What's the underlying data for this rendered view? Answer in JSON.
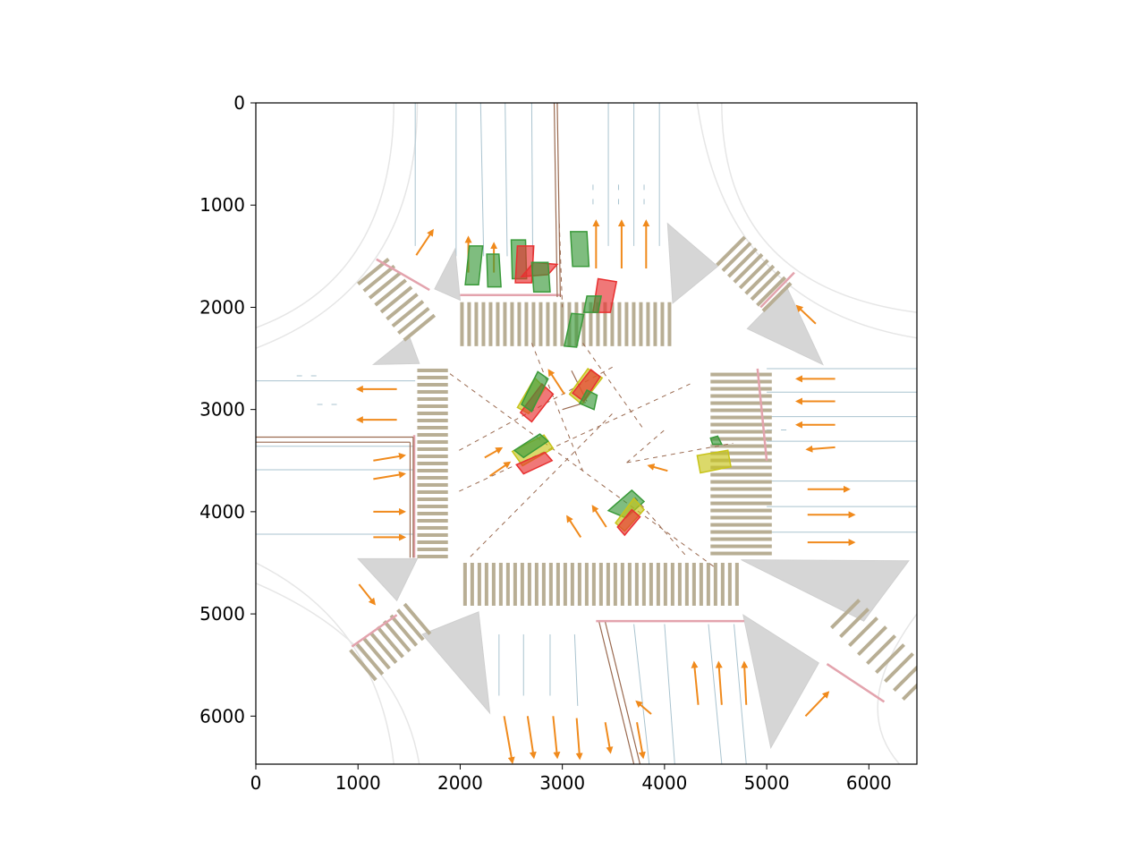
{
  "chart_data": {
    "type": "scatter",
    "subtype": "intersection-map",
    "title": "",
    "xlabel": "",
    "ylabel": "",
    "xlim": [
      0,
      6470
    ],
    "ylim": [
      6470,
      0
    ],
    "y_inverted": true,
    "grid": false,
    "xticks": [
      0,
      1000,
      2000,
      3000,
      4000,
      5000,
      6000
    ],
    "xtick_labels": [
      "0",
      "1000",
      "2000",
      "3000",
      "4000",
      "5000",
      "6000"
    ],
    "yticks": [
      0,
      1000,
      2000,
      3000,
      4000,
      5000,
      6000
    ],
    "ytick_labels": [
      "0",
      "1000",
      "2000",
      "3000",
      "4000",
      "5000",
      "6000"
    ],
    "colors": {
      "lane": "#a9c3cf",
      "road_edge": "#e6e6e6",
      "island": "#d6d6d6",
      "crosswalk": "#b8ae94",
      "stop_line": "#e3a3ad",
      "guide": "#9a6a50",
      "arrow": "#f08a1c",
      "green_box": "#3a9a3a",
      "red_box": "#e83030",
      "yellow_box": "#c8c41a"
    },
    "crosswalks": [
      {
        "name": "north",
        "x": [
          2000,
          4050
        ],
        "y": [
          1950,
          2380
        ],
        "dir": "v"
      },
      {
        "name": "south",
        "x": [
          2030,
          4700
        ],
        "y": [
          4500,
          4920
        ],
        "dir": "v"
      },
      {
        "name": "west",
        "x": [
          1580,
          1880
        ],
        "y": [
          2600,
          4450
        ],
        "dir": "h"
      },
      {
        "name": "east",
        "x": [
          4450,
          5050
        ],
        "y": [
          2640,
          4450
        ],
        "dir": "h"
      }
    ],
    "islands": [
      [
        [
          1750,
          1820
        ],
        [
          1950,
          1430
        ],
        [
          2000,
          1930
        ]
      ],
      [
        [
          1150,
          2560
        ],
        [
          1500,
          2280
        ],
        [
          1600,
          2550
        ]
      ],
      [
        [
          4030,
          1180
        ],
        [
          4520,
          1600
        ],
        [
          4080,
          1960
        ]
      ],
      [
        [
          4810,
          2210
        ],
        [
          5200,
          1810
        ],
        [
          5550,
          2560
        ]
      ],
      [
        [
          1000,
          4460
        ],
        [
          1580,
          4460
        ],
        [
          1380,
          4870
        ]
      ],
      [
        [
          1630,
          5200
        ],
        [
          2180,
          4980
        ],
        [
          2290,
          5970
        ]
      ],
      [
        [
          4750,
          4470
        ],
        [
          6390,
          4480
        ],
        [
          5950,
          5070
        ]
      ],
      [
        [
          4770,
          5010
        ],
        [
          5510,
          5480
        ],
        [
          5040,
          6310
        ]
      ]
    ],
    "boxes": [
      {
        "color": "green",
        "pts": [
          [
            2050,
            1780
          ],
          [
            2180,
            1780
          ],
          [
            2220,
            1400
          ],
          [
            2090,
            1400
          ]
        ]
      },
      {
        "color": "green",
        "pts": [
          [
            2270,
            1800
          ],
          [
            2400,
            1800
          ],
          [
            2380,
            1480
          ],
          [
            2260,
            1480
          ]
        ]
      },
      {
        "color": "green",
        "pts": [
          [
            2510,
            1720
          ],
          [
            2650,
            1720
          ],
          [
            2640,
            1340
          ],
          [
            2500,
            1340
          ]
        ]
      },
      {
        "color": "red",
        "pts": [
          [
            2540,
            1760
          ],
          [
            2700,
            1760
          ],
          [
            2720,
            1400
          ],
          [
            2560,
            1400
          ]
        ]
      },
      {
        "color": "red",
        "pts": [
          [
            2600,
            1700
          ],
          [
            2860,
            1680
          ],
          [
            2950,
            1580
          ],
          [
            2720,
            1560
          ]
        ]
      },
      {
        "color": "green",
        "pts": [
          [
            2720,
            1850
          ],
          [
            2880,
            1850
          ],
          [
            2860,
            1560
          ],
          [
            2700,
            1560
          ]
        ]
      },
      {
        "color": "green",
        "pts": [
          [
            3100,
            1600
          ],
          [
            3260,
            1600
          ],
          [
            3240,
            1260
          ],
          [
            3080,
            1260
          ]
        ]
      },
      {
        "color": "red",
        "pts": [
          [
            3300,
            2050
          ],
          [
            3470,
            2050
          ],
          [
            3530,
            1750
          ],
          [
            3350,
            1720
          ]
        ]
      },
      {
        "color": "green",
        "pts": [
          [
            3210,
            2050
          ],
          [
            3350,
            2050
          ],
          [
            3380,
            1890
          ],
          [
            3240,
            1890
          ]
        ]
      },
      {
        "color": "green",
        "pts": [
          [
            3020,
            2380
          ],
          [
            3140,
            2390
          ],
          [
            3210,
            2070
          ],
          [
            3090,
            2060
          ]
        ]
      },
      {
        "color": "yellow",
        "pts": [
          [
            2560,
            2980
          ],
          [
            2670,
            3040
          ],
          [
            2830,
            2790
          ],
          [
            2730,
            2690
          ]
        ]
      },
      {
        "color": "red",
        "pts": [
          [
            2590,
            3030
          ],
          [
            2700,
            3120
          ],
          [
            2910,
            2850
          ],
          [
            2800,
            2750
          ]
        ]
      },
      {
        "color": "green",
        "pts": [
          [
            2600,
            2950
          ],
          [
            2700,
            3020
          ],
          [
            2860,
            2700
          ],
          [
            2760,
            2630
          ]
        ]
      },
      {
        "color": "yellow",
        "pts": [
          [
            3070,
            2850
          ],
          [
            3190,
            2950
          ],
          [
            3390,
            2690
          ],
          [
            3250,
            2600
          ]
        ]
      },
      {
        "color": "red",
        "pts": [
          [
            3100,
            2840
          ],
          [
            3210,
            2920
          ],
          [
            3370,
            2680
          ],
          [
            3280,
            2610
          ]
        ]
      },
      {
        "color": "green",
        "pts": [
          [
            3170,
            2940
          ],
          [
            3310,
            3000
          ],
          [
            3340,
            2860
          ],
          [
            3240,
            2810
          ]
        ]
      },
      {
        "color": "yellow",
        "pts": [
          [
            2510,
            3410
          ],
          [
            2610,
            3550
          ],
          [
            2910,
            3380
          ],
          [
            2820,
            3250
          ]
        ]
      },
      {
        "color": "green",
        "pts": [
          [
            2530,
            3400
          ],
          [
            2620,
            3470
          ],
          [
            2860,
            3310
          ],
          [
            2780,
            3240
          ]
        ]
      },
      {
        "color": "red",
        "pts": [
          [
            2620,
            3630
          ],
          [
            2900,
            3500
          ],
          [
            2830,
            3420
          ],
          [
            2550,
            3540
          ]
        ]
      },
      {
        "color": "yellow",
        "pts": [
          [
            4350,
            3620
          ],
          [
            4650,
            3560
          ],
          [
            4620,
            3400
          ],
          [
            4320,
            3450
          ]
        ]
      },
      {
        "color": "green",
        "pts": [
          [
            4470,
            3340
          ],
          [
            4560,
            3340
          ],
          [
            4520,
            3260
          ],
          [
            4450,
            3280
          ]
        ]
      },
      {
        "color": "green",
        "pts": [
          [
            3450,
            3990
          ],
          [
            3620,
            4060
          ],
          [
            3800,
            3900
          ],
          [
            3680,
            3790
          ]
        ]
      },
      {
        "color": "yellow",
        "pts": [
          [
            3520,
            4110
          ],
          [
            3610,
            4190
          ],
          [
            3800,
            3980
          ],
          [
            3700,
            3870
          ]
        ]
      },
      {
        "color": "red",
        "pts": [
          [
            3540,
            4150
          ],
          [
            3610,
            4230
          ],
          [
            3760,
            4050
          ],
          [
            3680,
            3980
          ]
        ]
      }
    ],
    "arrows": [
      [
        1380,
        2800,
        1000,
        2800
      ],
      [
        1380,
        3100,
        1000,
        3100
      ],
      [
        1150,
        3500,
        1450,
        3450
      ],
      [
        1150,
        3680,
        1450,
        3630
      ],
      [
        1150,
        4000,
        1450,
        4000
      ],
      [
        1150,
        4250,
        1450,
        4250
      ],
      [
        5670,
        2700,
        5300,
        2700
      ],
      [
        5670,
        2920,
        5300,
        2920
      ],
      [
        5670,
        3150,
        5300,
        3150
      ],
      [
        5670,
        3370,
        5400,
        3390
      ],
      [
        5400,
        3780,
        5800,
        3780
      ],
      [
        5400,
        4030,
        5850,
        4030
      ],
      [
        5400,
        4300,
        5850,
        4300
      ],
      [
        2080,
        1660,
        2080,
        1320
      ],
      [
        2330,
        1660,
        2330,
        1380
      ],
      [
        3330,
        1620,
        3330,
        1160
      ],
      [
        3580,
        1620,
        3580,
        1160
      ],
      [
        3820,
        1620,
        3820,
        1160
      ],
      [
        1570,
        1490,
        1730,
        1250
      ],
      [
        5480,
        2160,
        5300,
        1990
      ],
      [
        1010,
        4710,
        1160,
        4900
      ],
      [
        5380,
        6000,
        5600,
        5770
      ],
      [
        2430,
        6000,
        2510,
        6450
      ],
      [
        2660,
        6000,
        2720,
        6400
      ],
      [
        2910,
        6000,
        2950,
        6400
      ],
      [
        3140,
        6020,
        3170,
        6410
      ],
      [
        3420,
        6060,
        3470,
        6350
      ],
      [
        3730,
        6060,
        3790,
        6400
      ],
      [
        4330,
        5890,
        4290,
        5480
      ],
      [
        4560,
        5890,
        4530,
        5480
      ],
      [
        4800,
        5890,
        4780,
        5480
      ],
      [
        3870,
        5980,
        3730,
        5860
      ],
      [
        2240,
        3470,
        2400,
        3380
      ],
      [
        2290,
        3650,
        2480,
        3520
      ],
      [
        4030,
        3600,
        3850,
        3550
      ],
      [
        3180,
        4250,
        3050,
        4050
      ],
      [
        3430,
        4150,
        3300,
        3950
      ],
      [
        3020,
        2850,
        2870,
        2620
      ]
    ],
    "lanes_v": [
      [
        1560,
        0,
        1560,
        1400
      ],
      [
        1960,
        0,
        1960,
        1500
      ],
      [
        2200,
        0,
        2230,
        1500
      ],
      [
        2440,
        0,
        2460,
        1500
      ],
      [
        2700,
        0,
        2710,
        1500
      ],
      [
        3450,
        0,
        3450,
        1400
      ],
      [
        3700,
        0,
        3700,
        1400
      ],
      [
        3950,
        0,
        3950,
        1400
      ],
      [
        2380,
        5200,
        2380,
        5800
      ],
      [
        2620,
        5200,
        2620,
        5800
      ],
      [
        2880,
        5200,
        2880,
        5800
      ],
      [
        3120,
        5200,
        3150,
        5900
      ],
      [
        3700,
        5100,
        3850,
        6470
      ],
      [
        4000,
        5100,
        4100,
        6470
      ],
      [
        4430,
        5100,
        4560,
        6470
      ],
      [
        4680,
        5100,
        4800,
        6470
      ]
    ],
    "lanes_h": [
      [
        0,
        2720,
        1560,
        2720
      ],
      [
        0,
        3360,
        1560,
        3360
      ],
      [
        0,
        3590,
        1560,
        3590
      ],
      [
        0,
        4220,
        1560,
        4220
      ],
      [
        5000,
        2600,
        6470,
        2600
      ],
      [
        5000,
        2830,
        6470,
        2830
      ],
      [
        5000,
        3070,
        6470,
        3070
      ],
      [
        5000,
        3310,
        6470,
        3310
      ],
      [
        5000,
        3700,
        6470,
        3700
      ],
      [
        5000,
        3950,
        6470,
        3950
      ],
      [
        5000,
        4200,
        6470,
        4200
      ]
    ],
    "stop_lines": [
      [
        2000,
        1880,
        2990,
        1880
      ],
      [
        1180,
        1530,
        1700,
        1830
      ],
      [
        4940,
        2000,
        5270,
        1660
      ],
      [
        1550,
        3250,
        1550,
        4450
      ],
      [
        4910,
        2600,
        5000,
        3500
      ],
      [
        940,
        5320,
        1380,
        5010
      ],
      [
        3330,
        5070,
        4780,
        5070
      ],
      [
        5590,
        5490,
        6150,
        5860
      ]
    ],
    "guides": [
      [
        2920,
        0,
        2950,
        1900
      ],
      [
        2950,
        0,
        2980,
        1900
      ],
      [
        0,
        3270,
        1540,
        3270
      ],
      [
        0,
        3320,
        1510,
        3320
      ],
      [
        1540,
        3270,
        1540,
        4450
      ],
      [
        1510,
        3320,
        1510,
        4450
      ],
      [
        3360,
        5080,
        3700,
        6470
      ],
      [
        3420,
        5080,
        3760,
        6470
      ],
      [
        3000,
        3000,
        3230,
        2930
      ],
      [
        3240,
        2920,
        3090,
        2620
      ]
    ],
    "dashed_guides": [
      [
        1900,
        2650,
        4500,
        4550
      ],
      [
        1990,
        3800,
        4250,
        2750
      ],
      [
        1990,
        3400,
        3500,
        2580
      ],
      [
        2100,
        4440,
        3500,
        3030
      ],
      [
        2700,
        2350,
        3200,
        3600
      ],
      [
        3200,
        2350,
        3800,
        3200
      ],
      [
        2970,
        1180,
        3000,
        2000
      ],
      [
        4200,
        4420,
        3700,
        3850
      ],
      [
        3630,
        3520,
        4670,
        3330
      ],
      [
        3630,
        3520,
        4000,
        3200
      ]
    ]
  }
}
